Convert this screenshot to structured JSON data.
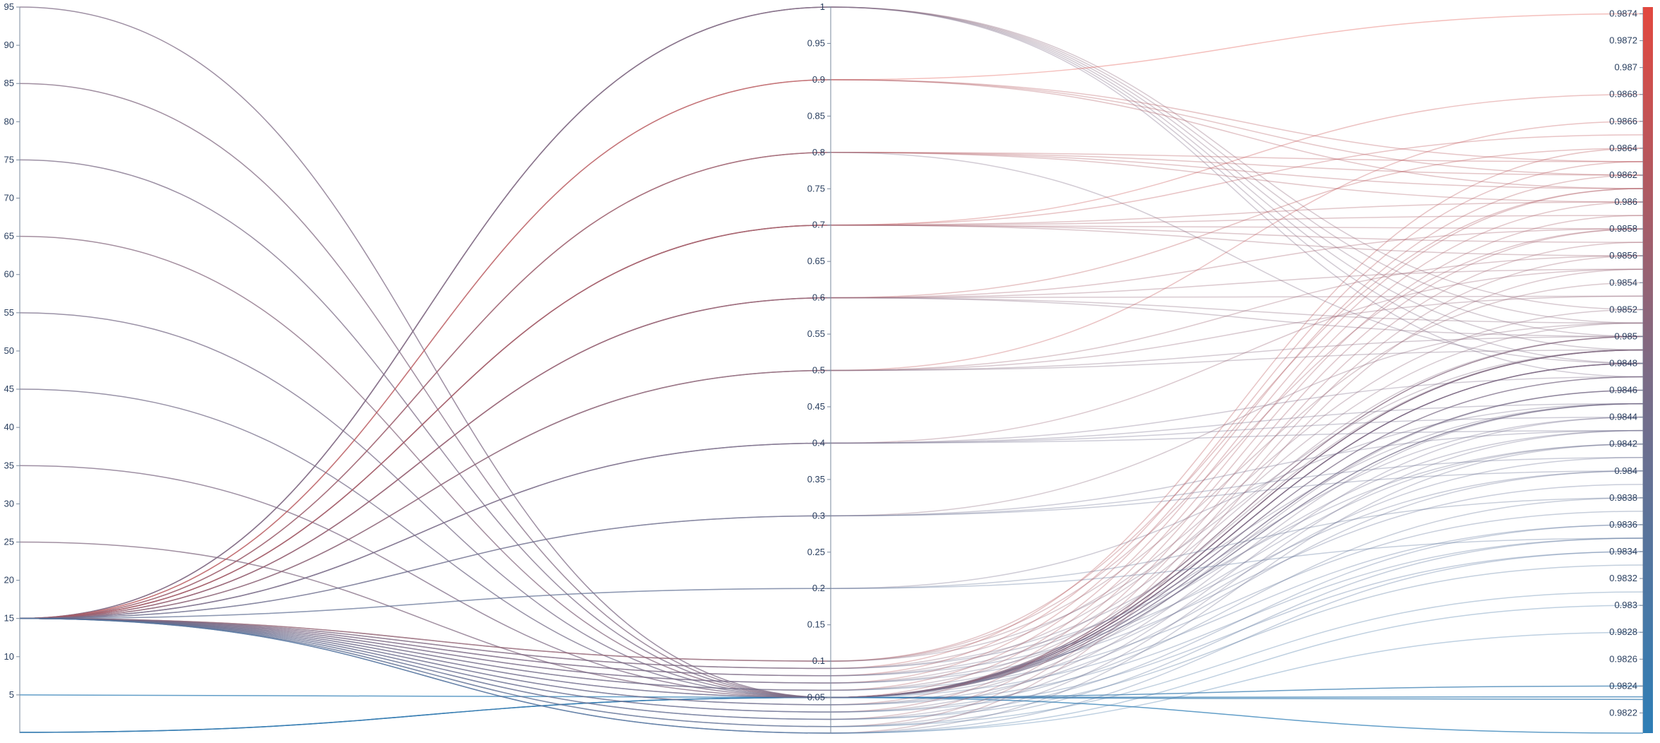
{
  "chart_data": {
    "type": "parallel_coordinates",
    "title": "",
    "axes": [
      {
        "label": "",
        "range": [
          0,
          95
        ],
        "ticks": [
          "5",
          "10",
          "15",
          "20",
          "25",
          "30",
          "35",
          "40",
          "45",
          "50",
          "55",
          "60",
          "65",
          "70",
          "75",
          "80",
          "85",
          "90",
          "95"
        ]
      },
      {
        "label": "",
        "range": [
          0.001,
          1
        ],
        "ticks": [
          "0.05",
          "0.1",
          "0.15",
          "0.2",
          "0.25",
          "0.3",
          "0.35",
          "0.4",
          "0.45",
          "0.5",
          "0.55",
          "0.6",
          "0.65",
          "0.7",
          "0.75",
          "0.8",
          "0.85",
          "0.9",
          "0.95",
          "1"
        ]
      },
      {
        "label": "",
        "range": [
          0.98205,
          0.98745
        ],
        "ticks": [
          "0.9822",
          "0.9824",
          "0.9826",
          "0.9828",
          "0.983",
          "0.9832",
          "0.9834",
          "0.9836",
          "0.9838",
          "0.984",
          "0.9842",
          "0.9844",
          "0.9846",
          "0.9848",
          "0.985",
          "0.9852",
          "0.9854",
          "0.9856",
          "0.9858",
          "0.986",
          "0.9862",
          "0.9864",
          "0.9866",
          "0.9868",
          "0.987",
          "0.9872",
          "0.9874"
        ]
      }
    ],
    "colorscale": {
      "low": "#2e7eb6",
      "mid": "#7c6b85",
      "high": "#e2483f",
      "range": [
        0.98205,
        0.98745
      ]
    },
    "lines": [
      [
        95,
        0.05,
        0.9848
      ],
      [
        85,
        0.05,
        0.9849
      ],
      [
        75,
        0.05,
        0.9847
      ],
      [
        65,
        0.05,
        0.985
      ],
      [
        55,
        0.05,
        0.9846
      ],
      [
        45,
        0.05,
        0.9845
      ],
      [
        35,
        0.05,
        0.9848
      ],
      [
        25,
        0.05,
        0.9849
      ],
      [
        5,
        0.05,
        0.98205
      ],
      [
        0.1,
        0.05,
        0.9824
      ],
      [
        0.1,
        0.05,
        0.98232
      ],
      [
        0.1,
        0.05,
        0.9823
      ],
      [
        15,
        1,
        0.9852
      ],
      [
        15,
        1,
        0.9851
      ],
      [
        15,
        1,
        0.985
      ],
      [
        15,
        1,
        0.9849
      ],
      [
        15,
        1,
        0.9848
      ],
      [
        15,
        1,
        0.9847
      ],
      [
        15,
        0.9,
        0.9874
      ],
      [
        15,
        0.9,
        0.9863
      ],
      [
        15,
        0.9,
        0.9862
      ],
      [
        15,
        0.9,
        0.9861
      ],
      [
        15,
        0.8,
        0.9863
      ],
      [
        15,
        0.8,
        0.9862
      ],
      [
        15,
        0.8,
        0.9861
      ],
      [
        15,
        0.8,
        0.986
      ],
      [
        15,
        0.8,
        0.9848
      ],
      [
        15,
        0.7,
        0.9868
      ],
      [
        15,
        0.7,
        0.9865
      ],
      [
        15,
        0.7,
        0.9858
      ],
      [
        15,
        0.7,
        0.9859
      ],
      [
        15,
        0.7,
        0.986
      ],
      [
        15,
        0.7,
        0.9857
      ],
      [
        15,
        0.7,
        0.9856
      ],
      [
        15,
        0.6,
        0.9864
      ],
      [
        15,
        0.6,
        0.9855
      ],
      [
        15,
        0.6,
        0.9853
      ],
      [
        15,
        0.6,
        0.9851
      ],
      [
        15,
        0.6,
        0.985
      ],
      [
        15,
        0.6,
        0.9858
      ],
      [
        15,
        0.5,
        0.9866
      ],
      [
        15,
        0.5,
        0.9856
      ],
      [
        15,
        0.5,
        0.9853
      ],
      [
        15,
        0.5,
        0.9849
      ],
      [
        15,
        0.5,
        0.985
      ],
      [
        15,
        0.4,
        0.9855
      ],
      [
        15,
        0.4,
        0.9845
      ],
      [
        15,
        0.4,
        0.9844
      ],
      [
        15,
        0.4,
        0.9843
      ],
      [
        15,
        0.4,
        0.9847
      ],
      [
        15,
        0.3,
        0.9851
      ],
      [
        15,
        0.3,
        0.9843
      ],
      [
        15,
        0.3,
        0.9841
      ],
      [
        15,
        0.3,
        0.984
      ],
      [
        15,
        0.2,
        0.9845
      ],
      [
        15,
        0.2,
        0.9838
      ],
      [
        15,
        0.2,
        0.9835
      ],
      [
        15,
        0.1,
        0.9861
      ],
      [
        15,
        0.1,
        0.9858
      ],
      [
        15,
        0.1,
        0.9854
      ],
      [
        15,
        0.1,
        0.9849
      ],
      [
        15,
        0.09,
        0.9864
      ],
      [
        15,
        0.09,
        0.9852
      ],
      [
        15,
        0.09,
        0.9845
      ],
      [
        15,
        0.09,
        0.9842
      ],
      [
        15,
        0.08,
        0.9863
      ],
      [
        15,
        0.08,
        0.9851
      ],
      [
        15,
        0.08,
        0.9844
      ],
      [
        15,
        0.08,
        0.984
      ],
      [
        15,
        0.07,
        0.9862
      ],
      [
        15,
        0.07,
        0.985
      ],
      [
        15,
        0.07,
        0.9843
      ],
      [
        15,
        0.07,
        0.9839
      ],
      [
        15,
        0.06,
        0.9861
      ],
      [
        15,
        0.06,
        0.9849
      ],
      [
        15,
        0.06,
        0.9842
      ],
      [
        15,
        0.06,
        0.9837
      ],
      [
        15,
        0.05,
        0.986
      ],
      [
        15,
        0.05,
        0.9848
      ],
      [
        15,
        0.05,
        0.9841
      ],
      [
        15,
        0.05,
        0.9836
      ],
      [
        15,
        0.04,
        0.9859
      ],
      [
        15,
        0.04,
        0.9846
      ],
      [
        15,
        0.04,
        0.984
      ],
      [
        15,
        0.04,
        0.9835
      ],
      [
        15,
        0.03,
        0.9858
      ],
      [
        15,
        0.03,
        0.9845
      ],
      [
        15,
        0.03,
        0.9838
      ],
      [
        15,
        0.03,
        0.9834
      ],
      [
        15,
        0.02,
        0.9857
      ],
      [
        15,
        0.02,
        0.9844
      ],
      [
        15,
        0.02,
        0.9836
      ],
      [
        15,
        0.02,
        0.9833
      ],
      [
        15,
        0.01,
        0.9856
      ],
      [
        15,
        0.01,
        0.9843
      ],
      [
        15,
        0.01,
        0.9835
      ],
      [
        15,
        0.01,
        0.9831
      ],
      [
        15,
        0.001,
        0.9855
      ],
      [
        15,
        0.001,
        0.9842
      ],
      [
        15,
        0.001,
        0.9834
      ],
      [
        15,
        0.001,
        0.983
      ],
      [
        15,
        0.001,
        0.9828
      ]
    ]
  }
}
